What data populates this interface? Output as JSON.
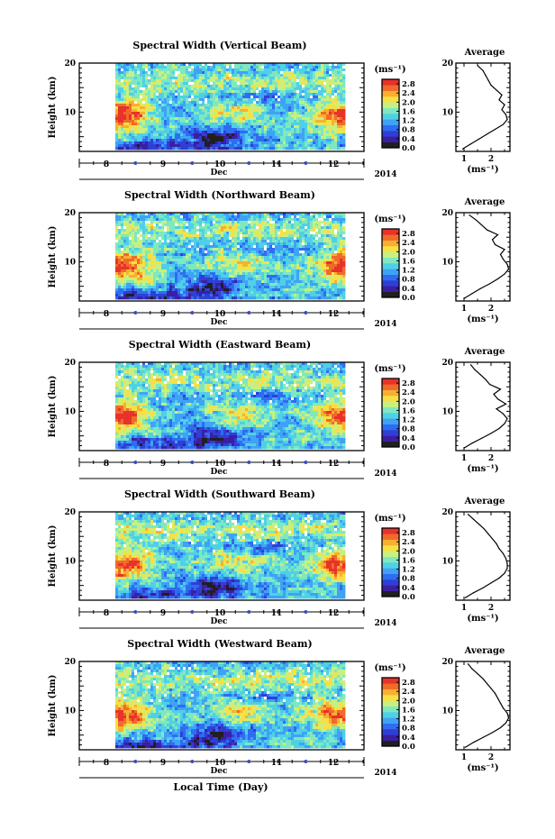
{
  "chart_data": {
    "type": "heatmap",
    "time_axis": {
      "ticks": [
        "8",
        "9",
        "10",
        "11",
        "12"
      ],
      "month_label": "Dec",
      "year_label": "2014",
      "xlabel": "Local Time (Day)"
    },
    "colorbar": {
      "unit_label": "(ms⁻¹)",
      "ticks": [
        "0.0",
        "0.4",
        "0.8",
        "1.2",
        "1.6",
        "2.0",
        "2.4",
        "2.8"
      ],
      "range": [
        0,
        3.0
      ],
      "colors": [
        "#202020",
        "#3b1fa3",
        "#2f3fd6",
        "#2f6df0",
        "#3fa2f5",
        "#4fd0e6",
        "#7fe8c0",
        "#c8f080",
        "#f7e045",
        "#f7b030",
        "#f06a2a",
        "#e8322a"
      ]
    },
    "panels": [
      {
        "title": "Spectral Width (Vertical Beam)",
        "ylabel": "Height (km)",
        "yticks": [
          "20",
          "10"
        ],
        "ylim": [
          2,
          20
        ],
        "profile": {
          "title": "Average",
          "xlabel": "(ms⁻¹)",
          "xticks": [
            "1",
            "2"
          ],
          "xlim": [
            0.7,
            2.7
          ],
          "height_km": [
            2.5,
            3.5,
            4.5,
            5.5,
            6.5,
            7.5,
            8.5,
            9.5,
            10.5,
            11.5,
            12.5,
            13.5,
            14.5,
            15.5,
            16.5,
            17.5,
            18.5,
            19.5
          ],
          "width_ms": [
            0.95,
            1.25,
            1.55,
            1.85,
            2.15,
            2.45,
            2.6,
            2.55,
            2.4,
            2.5,
            2.3,
            2.4,
            2.2,
            2.0,
            1.9,
            1.8,
            1.7,
            1.5
          ]
        }
      },
      {
        "title": "Spectral Width (Northward Beam)",
        "ylabel": "Height (km)",
        "yticks": [
          "20",
          "10"
        ],
        "ylim": [
          2,
          20
        ],
        "profile": {
          "title": "Average",
          "xlabel": "(ms⁻¹)",
          "xticks": [
            "1",
            "2"
          ],
          "xlim": [
            0.7,
            2.7
          ],
          "height_km": [
            2.5,
            3.5,
            4.5,
            5.5,
            6.5,
            7.5,
            8.5,
            9.5,
            10.5,
            11.5,
            12.5,
            13.5,
            14.5,
            15.5,
            16.5,
            17.5,
            18.5,
            19.5
          ],
          "width_ms": [
            1.0,
            1.3,
            1.6,
            1.95,
            2.25,
            2.5,
            2.65,
            2.6,
            2.45,
            2.35,
            2.5,
            2.15,
            2.05,
            2.25,
            1.85,
            1.65,
            1.45,
            1.2
          ]
        }
      },
      {
        "title": "Spectral Width (Eastward Beam)",
        "ylabel": "Height (km)",
        "yticks": [
          "20",
          "10"
        ],
        "ylim": [
          2,
          20
        ],
        "profile": {
          "title": "Average",
          "xlabel": "(ms⁻¹)",
          "xticks": [
            "1",
            "2"
          ],
          "xlim": [
            0.7,
            2.7
          ],
          "height_km": [
            2.5,
            3.5,
            4.5,
            5.5,
            6.5,
            7.5,
            8.5,
            9.5,
            10.5,
            11.5,
            12.5,
            13.5,
            14.5,
            15.5,
            16.5,
            17.5,
            18.5,
            19.5
          ],
          "width_ms": [
            1.0,
            1.3,
            1.65,
            2.0,
            2.3,
            2.5,
            2.6,
            2.45,
            2.2,
            2.55,
            2.25,
            2.1,
            2.35,
            1.95,
            1.8,
            1.6,
            1.4,
            1.25
          ]
        }
      },
      {
        "title": "Spectral Width (Southward Beam)",
        "ylabel": "Height (km)",
        "yticks": [
          "20",
          "10"
        ],
        "ylim": [
          2,
          20
        ],
        "profile": {
          "title": "Average",
          "xlabel": "(ms⁻¹)",
          "xticks": [
            "1",
            "2"
          ],
          "xlim": [
            0.7,
            2.7
          ],
          "height_km": [
            2.5,
            3.5,
            4.5,
            5.5,
            6.5,
            7.5,
            8.5,
            9.5,
            10.5,
            11.5,
            12.5,
            13.5,
            14.5,
            15.5,
            16.5,
            17.5,
            18.5,
            19.5
          ],
          "width_ms": [
            1.05,
            1.35,
            1.7,
            2.0,
            2.3,
            2.5,
            2.6,
            2.6,
            2.55,
            2.45,
            2.3,
            2.2,
            2.05,
            1.9,
            1.75,
            1.55,
            1.35,
            1.15
          ]
        }
      },
      {
        "title": "Spectral Width (Westward Beam)",
        "ylabel": "Height (km)",
        "yticks": [
          "20",
          "10"
        ],
        "ylim": [
          2,
          20
        ],
        "profile": {
          "title": "Average",
          "xlabel": "(ms⁻¹)",
          "xticks": [
            "1",
            "2"
          ],
          "xlim": [
            0.7,
            2.7
          ],
          "height_km": [
            2.5,
            3.5,
            4.5,
            5.5,
            6.5,
            7.5,
            8.5,
            9.5,
            10.5,
            11.5,
            12.5,
            13.5,
            14.5,
            15.5,
            16.5,
            17.5,
            18.5,
            19.5
          ],
          "width_ms": [
            1.05,
            1.35,
            1.7,
            2.05,
            2.35,
            2.55,
            2.65,
            2.6,
            2.45,
            2.35,
            2.25,
            2.15,
            2.0,
            1.85,
            1.7,
            1.5,
            1.3,
            1.15
          ]
        }
      }
    ]
  }
}
